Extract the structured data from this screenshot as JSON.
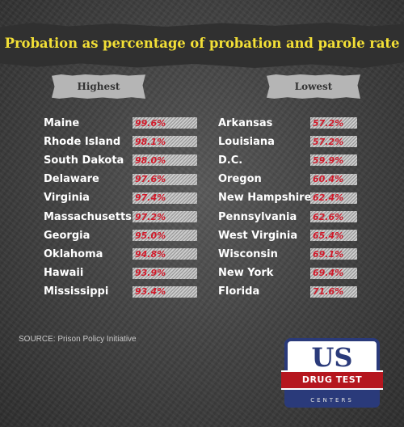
{
  "title": "Probation as percentage of probation and parole rate",
  "highest": {
    "label": "Highest",
    "items": [
      {
        "state": "Maine",
        "pct": "99.6%"
      },
      {
        "state": "Rhode Island",
        "pct": "98.1%"
      },
      {
        "state": "South Dakota",
        "pct": "98.0%"
      },
      {
        "state": "Delaware",
        "pct": "97.6%"
      },
      {
        "state": "Virginia",
        "pct": "97.4%"
      },
      {
        "state": "Massachusetts",
        "pct": "97.2%"
      },
      {
        "state": "Georgia",
        "pct": "95.0%"
      },
      {
        "state": "Oklahoma",
        "pct": "94.8%"
      },
      {
        "state": "Hawaii",
        "pct": "93.9%"
      },
      {
        "state": "Mississippi",
        "pct": "93.4%"
      }
    ]
  },
  "lowest": {
    "label": "Lowest",
    "items": [
      {
        "state": "Arkansas",
        "pct": "57.2%"
      },
      {
        "state": "Louisiana",
        "pct": "57.2%"
      },
      {
        "state": "D.C.",
        "pct": "59.9%"
      },
      {
        "state": "Oregon",
        "pct": "60.4%"
      },
      {
        "state": "New Hampshire",
        "pct": "62.4%"
      },
      {
        "state": "Pennsylvania",
        "pct": "62.6%"
      },
      {
        "state": "West Virginia",
        "pct": "65.4%"
      },
      {
        "state": "Wisconsin",
        "pct": "69.1%"
      },
      {
        "state": "New York",
        "pct": "69.4%"
      },
      {
        "state": "Florida",
        "pct": "71.6%"
      }
    ]
  },
  "source": "SOURCE: Prison Policy Initiative",
  "logo": {
    "main": "US",
    "banner": "DRUG TEST",
    "sub": "CENTERS"
  },
  "colors": {
    "title": "#f2df36",
    "percentage": "#d11a2a",
    "logo_blue": "#2a3a7a",
    "logo_red": "#b5161e"
  }
}
